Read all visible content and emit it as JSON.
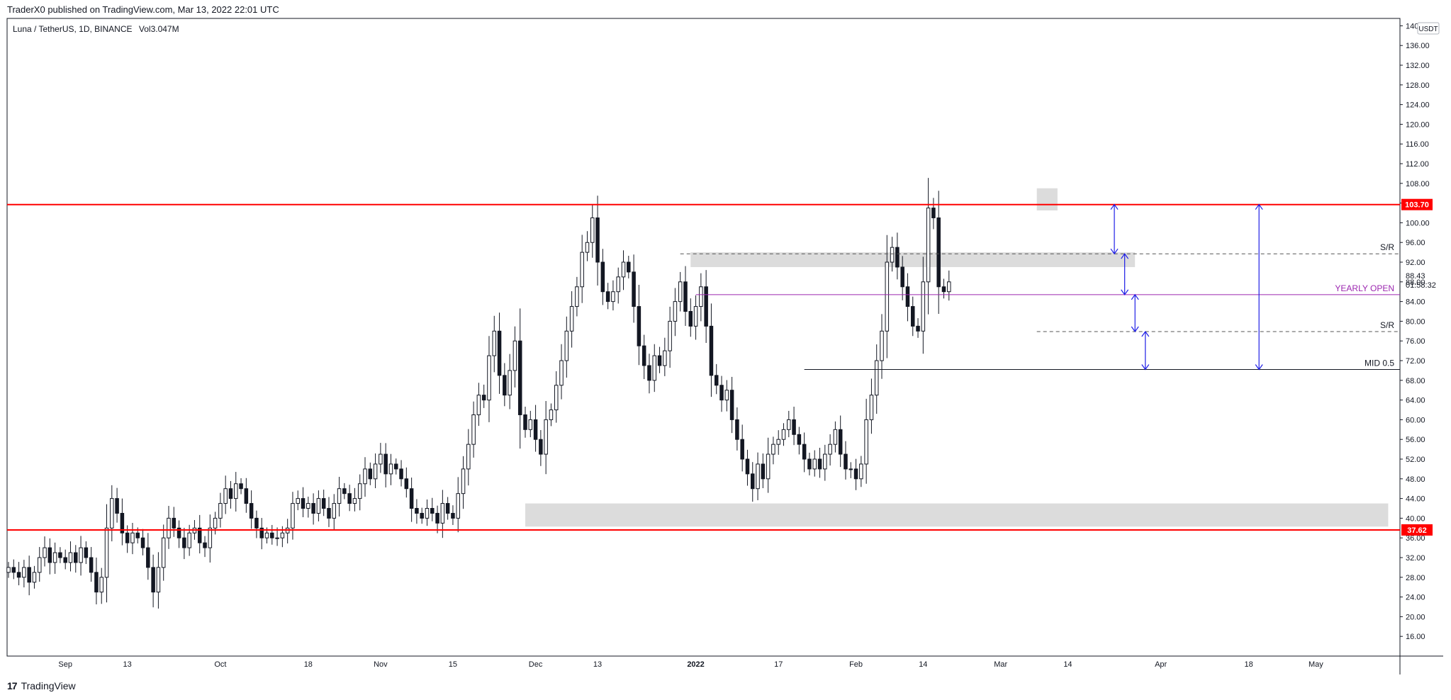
{
  "header": {
    "published": "TraderX0 published on TradingView.com, Mar 13, 2022 22:01 UTC",
    "symbol_line": "Luna / TetherUS, 1D, BINANCE",
    "volume_label": "Vol",
    "volume_value": "3.047M"
  },
  "footer": {
    "brand_mark": "17",
    "brand": "TradingView"
  },
  "colors": {
    "up": "#ffffff",
    "down": "#131722",
    "wick": "#131722",
    "resistance": "#ff0000",
    "yearly_open": "#9c27b0",
    "arrows": "#1e1ee6",
    "zone": "#d6d6d6",
    "dashed": "#555555",
    "mid": "#131722"
  },
  "chart_data": {
    "type": "candlestick",
    "title": "Luna / TetherUS, 1D, BINANCE",
    "y_axis": {
      "currency": "USDT",
      "ticks": [
        16,
        20,
        24,
        28,
        32,
        36,
        40,
        44,
        48,
        52,
        56,
        60,
        64,
        68,
        72,
        76,
        80,
        84,
        88,
        92,
        96,
        100,
        104,
        108,
        112,
        116,
        120,
        124,
        128,
        132,
        136,
        140
      ],
      "ylim": [
        12.0,
        141.5
      ],
      "last_price": "88.43",
      "countdown": "01:58:32"
    },
    "x_axis": {
      "start_date": "2021-08-21",
      "ticks": [
        {
          "label": "Sep",
          "date": "2021-09-01"
        },
        {
          "label": "13",
          "date": "2021-09-13"
        },
        {
          "label": "Oct",
          "date": "2021-10-01"
        },
        {
          "label": "18",
          "date": "2021-10-18"
        },
        {
          "label": "Nov",
          "date": "2021-11-01"
        },
        {
          "label": "15",
          "date": "2021-11-15"
        },
        {
          "label": "Dec",
          "date": "2021-12-01"
        },
        {
          "label": "13",
          "date": "2021-12-13"
        },
        {
          "label": "2022",
          "date": "2022-01-01",
          "bold": true
        },
        {
          "label": "17",
          "date": "2022-01-17"
        },
        {
          "label": "Feb",
          "date": "2022-02-01"
        },
        {
          "label": "14",
          "date": "2022-02-14"
        },
        {
          "label": "Mar",
          "date": "2022-03-01"
        },
        {
          "label": "14",
          "date": "2022-03-14"
        },
        {
          "label": "Apr",
          "date": "2022-04-01"
        },
        {
          "label": "18",
          "date": "2022-04-18"
        },
        {
          "label": "May",
          "date": "2022-05-01"
        }
      ],
      "end_date": "2022-05-17"
    },
    "closes": [
      30,
      29,
      28,
      30,
      27,
      29,
      32,
      34,
      31,
      33,
      32,
      31,
      33,
      31,
      34,
      32,
      29,
      25,
      28,
      38,
      44,
      41,
      37,
      35,
      37,
      36,
      34,
      30,
      25,
      30,
      36,
      40,
      38,
      36,
      34,
      37,
      38,
      35,
      34,
      38,
      40,
      43,
      46,
      44,
      47,
      46,
      43,
      40,
      38,
      36,
      37,
      36,
      36,
      37,
      38,
      43,
      44,
      42,
      43,
      41,
      44,
      42,
      40,
      43,
      46,
      45,
      43,
      44,
      47,
      50,
      48,
      51,
      53,
      49,
      51,
      50,
      48,
      46,
      42,
      41,
      40,
      42,
      41,
      39,
      43,
      41,
      40,
      45,
      50,
      55,
      61,
      65,
      64,
      73,
      78,
      69,
      65,
      70,
      76,
      61,
      58,
      60,
      56,
      53,
      60,
      62,
      67,
      72,
      78,
      83,
      87,
      94,
      96,
      101,
      92,
      86,
      84,
      86,
      89,
      92,
      90,
      83,
      75,
      71,
      68,
      73,
      71,
      74,
      80,
      84,
      88,
      82,
      79,
      83,
      87,
      79,
      69,
      67,
      64,
      66,
      60,
      56,
      52,
      49,
      46,
      51,
      48,
      53,
      55,
      56,
      58,
      60,
      57,
      55,
      52,
      50,
      52,
      50,
      53,
      55,
      58,
      53,
      50,
      50,
      48,
      51,
      60,
      65,
      72,
      78,
      92,
      95,
      91,
      87,
      83,
      79,
      78,
      88,
      103,
      101,
      87,
      86,
      88
    ],
    "opens_extra": [
      {
        "index": 183,
        "open": 93
      }
    ],
    "annotations": {
      "levels": [
        {
          "name": "resistance-top",
          "value": 103.7,
          "label": "103.70",
          "style": "solid",
          "color": "#ff0000"
        },
        {
          "name": "resistance-bottom",
          "value": 37.62,
          "label": "37.62",
          "style": "solid",
          "color": "#ff0000"
        },
        {
          "name": "sr-upper",
          "value": 93.7,
          "label": "S/R",
          "style": "dashed",
          "from": "2021-12-29"
        },
        {
          "name": "yearly-open",
          "value": 85.4,
          "label": "YEARLY OPEN",
          "style": "solid",
          "color": "#9c27b0",
          "from": "2022-01-01"
        },
        {
          "name": "sr-lower",
          "value": 77.9,
          "label": "S/R",
          "style": "dashed",
          "from": "2022-03-08"
        },
        {
          "name": "mid",
          "value": 70.2,
          "label": "MID 0.5",
          "style": "solid",
          "from": "2022-01-22"
        }
      ],
      "zones": [
        {
          "name": "supply-zone",
          "from": "2021-12-31",
          "to": "2022-03-27",
          "y1": 91,
          "y2": 94
        },
        {
          "name": "demand-zone",
          "from": "2021-11-29",
          "to": "2022-05-15",
          "y1": 38.3,
          "y2": 43
        },
        {
          "name": "top-highlight",
          "from": "2022-03-08",
          "to": "2022-03-12",
          "y1": 102.5,
          "y2": 107
        }
      ],
      "measure_arrows": [
        {
          "date": "2022-03-23",
          "from": 103.7,
          "to": 93.7
        },
        {
          "date": "2022-03-25",
          "from": 93.7,
          "to": 85.4
        },
        {
          "date": "2022-03-27",
          "from": 85.4,
          "to": 77.9
        },
        {
          "date": "2022-03-29",
          "from": 77.9,
          "to": 70.2
        },
        {
          "date": "2022-04-20",
          "from": 103.7,
          "to": 70.2
        }
      ]
    }
  }
}
